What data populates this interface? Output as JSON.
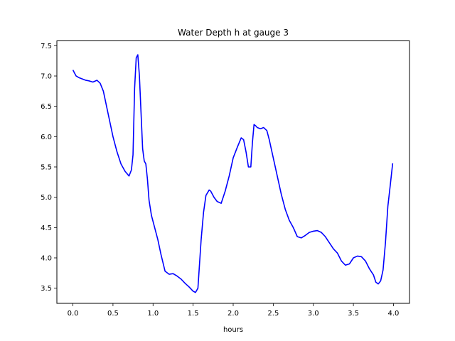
{
  "chart_data": {
    "type": "line",
    "title": "Water Depth h at gauge 3",
    "xlabel": "hours",
    "ylabel": "",
    "xlim": [
      -0.2,
      4.2
    ],
    "ylim": [
      3.25,
      7.58
    ],
    "xticks": [
      0.0,
      0.5,
      1.0,
      1.5,
      2.0,
      2.5,
      3.0,
      3.5,
      4.0
    ],
    "yticks": [
      3.5,
      4.0,
      4.5,
      5.0,
      5.5,
      6.0,
      6.5,
      7.0,
      7.5
    ],
    "xtick_labels": [
      "0.0",
      "0.5",
      "1.0",
      "1.5",
      "2.0",
      "2.5",
      "3.0",
      "3.5",
      "4.0"
    ],
    "ytick_labels": [
      "3.5",
      "4.0",
      "4.5",
      "5.0",
      "5.5",
      "6.0",
      "6.5",
      "7.0",
      "7.5"
    ],
    "grid": false,
    "series": [
      {
        "color": "#0000ff",
        "x": [
          0.0,
          0.04,
          0.08,
          0.12,
          0.16,
          0.2,
          0.25,
          0.3,
          0.34,
          0.38,
          0.42,
          0.46,
          0.5,
          0.55,
          0.6,
          0.65,
          0.7,
          0.73,
          0.75,
          0.77,
          0.79,
          0.81,
          0.83,
          0.85,
          0.87,
          0.89,
          0.91,
          0.93,
          0.95,
          0.98,
          1.02,
          1.06,
          1.1,
          1.15,
          1.2,
          1.25,
          1.3,
          1.35,
          1.4,
          1.45,
          1.5,
          1.53,
          1.56,
          1.58,
          1.6,
          1.63,
          1.66,
          1.7,
          1.72,
          1.76,
          1.8,
          1.85,
          1.9,
          1.95,
          2.0,
          2.05,
          2.1,
          2.13,
          2.16,
          2.19,
          2.22,
          2.24,
          2.26,
          2.28,
          2.3,
          2.34,
          2.38,
          2.42,
          2.45,
          2.5,
          2.55,
          2.6,
          2.65,
          2.7,
          2.75,
          2.8,
          2.85,
          2.9,
          2.95,
          3.0,
          3.05,
          3.1,
          3.15,
          3.2,
          3.25,
          3.3,
          3.35,
          3.4,
          3.45,
          3.5,
          3.55,
          3.6,
          3.65,
          3.7,
          3.75,
          3.78,
          3.81,
          3.84,
          3.87,
          3.9,
          3.93,
          3.96,
          3.99
        ],
        "y": [
          7.1,
          7.0,
          6.97,
          6.95,
          6.93,
          6.92,
          6.9,
          6.93,
          6.88,
          6.75,
          6.5,
          6.25,
          6.0,
          5.75,
          5.55,
          5.43,
          5.35,
          5.45,
          5.7,
          6.8,
          7.3,
          7.35,
          7.0,
          6.4,
          5.8,
          5.6,
          5.55,
          5.3,
          4.95,
          4.7,
          4.5,
          4.3,
          4.05,
          3.78,
          3.73,
          3.74,
          3.7,
          3.65,
          3.58,
          3.52,
          3.45,
          3.43,
          3.5,
          3.9,
          4.3,
          4.75,
          5.03,
          5.12,
          5.1,
          5.0,
          4.93,
          4.9,
          5.1,
          5.35,
          5.65,
          5.82,
          5.98,
          5.95,
          5.75,
          5.5,
          5.5,
          5.9,
          6.2,
          6.18,
          6.15,
          6.13,
          6.15,
          6.1,
          5.95,
          5.65,
          5.35,
          5.05,
          4.8,
          4.62,
          4.5,
          4.35,
          4.33,
          4.37,
          4.42,
          4.44,
          4.45,
          4.42,
          4.35,
          4.25,
          4.15,
          4.08,
          3.95,
          3.88,
          3.9,
          4.0,
          4.03,
          4.02,
          3.95,
          3.82,
          3.72,
          3.6,
          3.57,
          3.62,
          3.8,
          4.25,
          4.85,
          5.2,
          5.56
        ]
      }
    ]
  }
}
